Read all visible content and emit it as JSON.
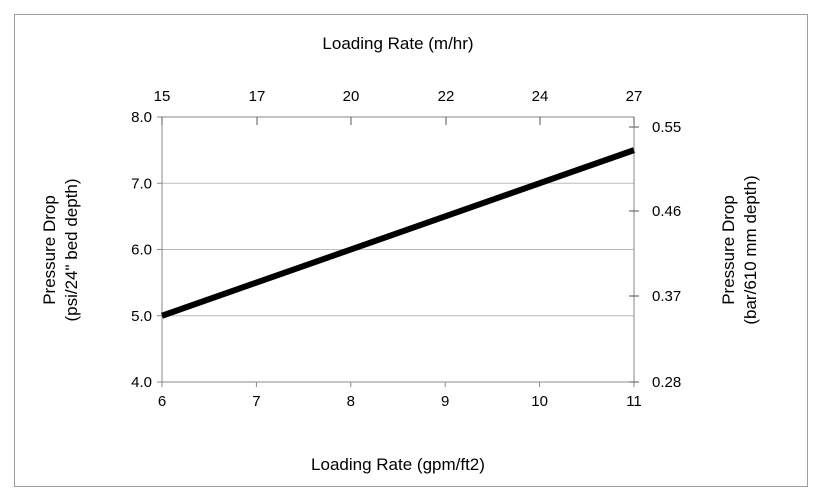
{
  "chart_data": {
    "type": "line",
    "title": "",
    "xlabel": "Loading Rate (gpm/ft2)",
    "x2label": "Loading Rate (m/hr)",
    "ylabel_lines": [
      "Pressure Drop",
      "(psi/24\" bed depth)"
    ],
    "y2label_lines": [
      "Pressure Drop",
      "(bar/610 mm depth)"
    ],
    "xlim": [
      6,
      11
    ],
    "ylim": [
      4.0,
      8.0
    ],
    "x_ticks": [
      6,
      7,
      8,
      9,
      10,
      11
    ],
    "x_tick_labels": [
      "6",
      "7",
      "8",
      "9",
      "10",
      "11"
    ],
    "y_ticks": [
      4.0,
      5.0,
      6.0,
      7.0,
      8.0
    ],
    "y_tick_labels": [
      "4.0",
      "5.0",
      "6.0",
      "7.0",
      "8.0"
    ],
    "x2_ticks": [
      15,
      17,
      20,
      22,
      24,
      27
    ],
    "x2_tick_labels": [
      "15",
      "17",
      "20",
      "22",
      "24",
      "27"
    ],
    "y2_ticks": [
      0.28,
      0.37,
      0.46,
      0.55
    ],
    "y2_tick_labels": [
      "0.28",
      "0.37",
      "0.46",
      "0.55"
    ],
    "grid": true,
    "series": [
      {
        "x": [
          6,
          11
        ],
        "y": [
          5.0,
          7.5
        ],
        "color": "#000000"
      }
    ]
  }
}
